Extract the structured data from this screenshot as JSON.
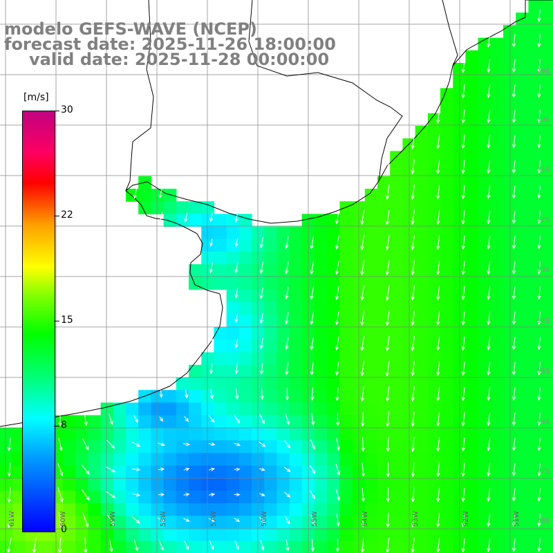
{
  "title": {
    "line1": "modelo GEFS-WAVE (NCEP)",
    "line2": "forecast date: 2025-11-26 18:00:00",
    "line3": "valid date: 2025-11-28 00:00:00"
  },
  "colorbar": {
    "unit": "[m/s]",
    "ticks": [
      "30",
      "22",
      "15",
      "8",
      "0"
    ],
    "colors": [
      "#0000ff",
      "#00a0ff",
      "#00ffff",
      "#00ff80",
      "#00ff00",
      "#80ff00",
      "#ffff00",
      "#ffa000",
      "#ff0000",
      "#ff0060",
      "#c00080"
    ]
  },
  "longitude_labels": [
    "61W",
    "60W",
    "59W",
    "58W",
    "57W",
    "56W",
    "55W",
    "54W",
    "53W",
    "52W",
    "51W"
  ],
  "latitude_labels": [
    "29S",
    "30S",
    "31S",
    "32S",
    "33S",
    "34S",
    "35S",
    "36S",
    "37S",
    "38S",
    "39S",
    "40S"
  ],
  "colors": {
    "coastline": "#000000",
    "gridline": "#808080",
    "arrow": "#ffffff",
    "title_text": "#808080"
  }
}
